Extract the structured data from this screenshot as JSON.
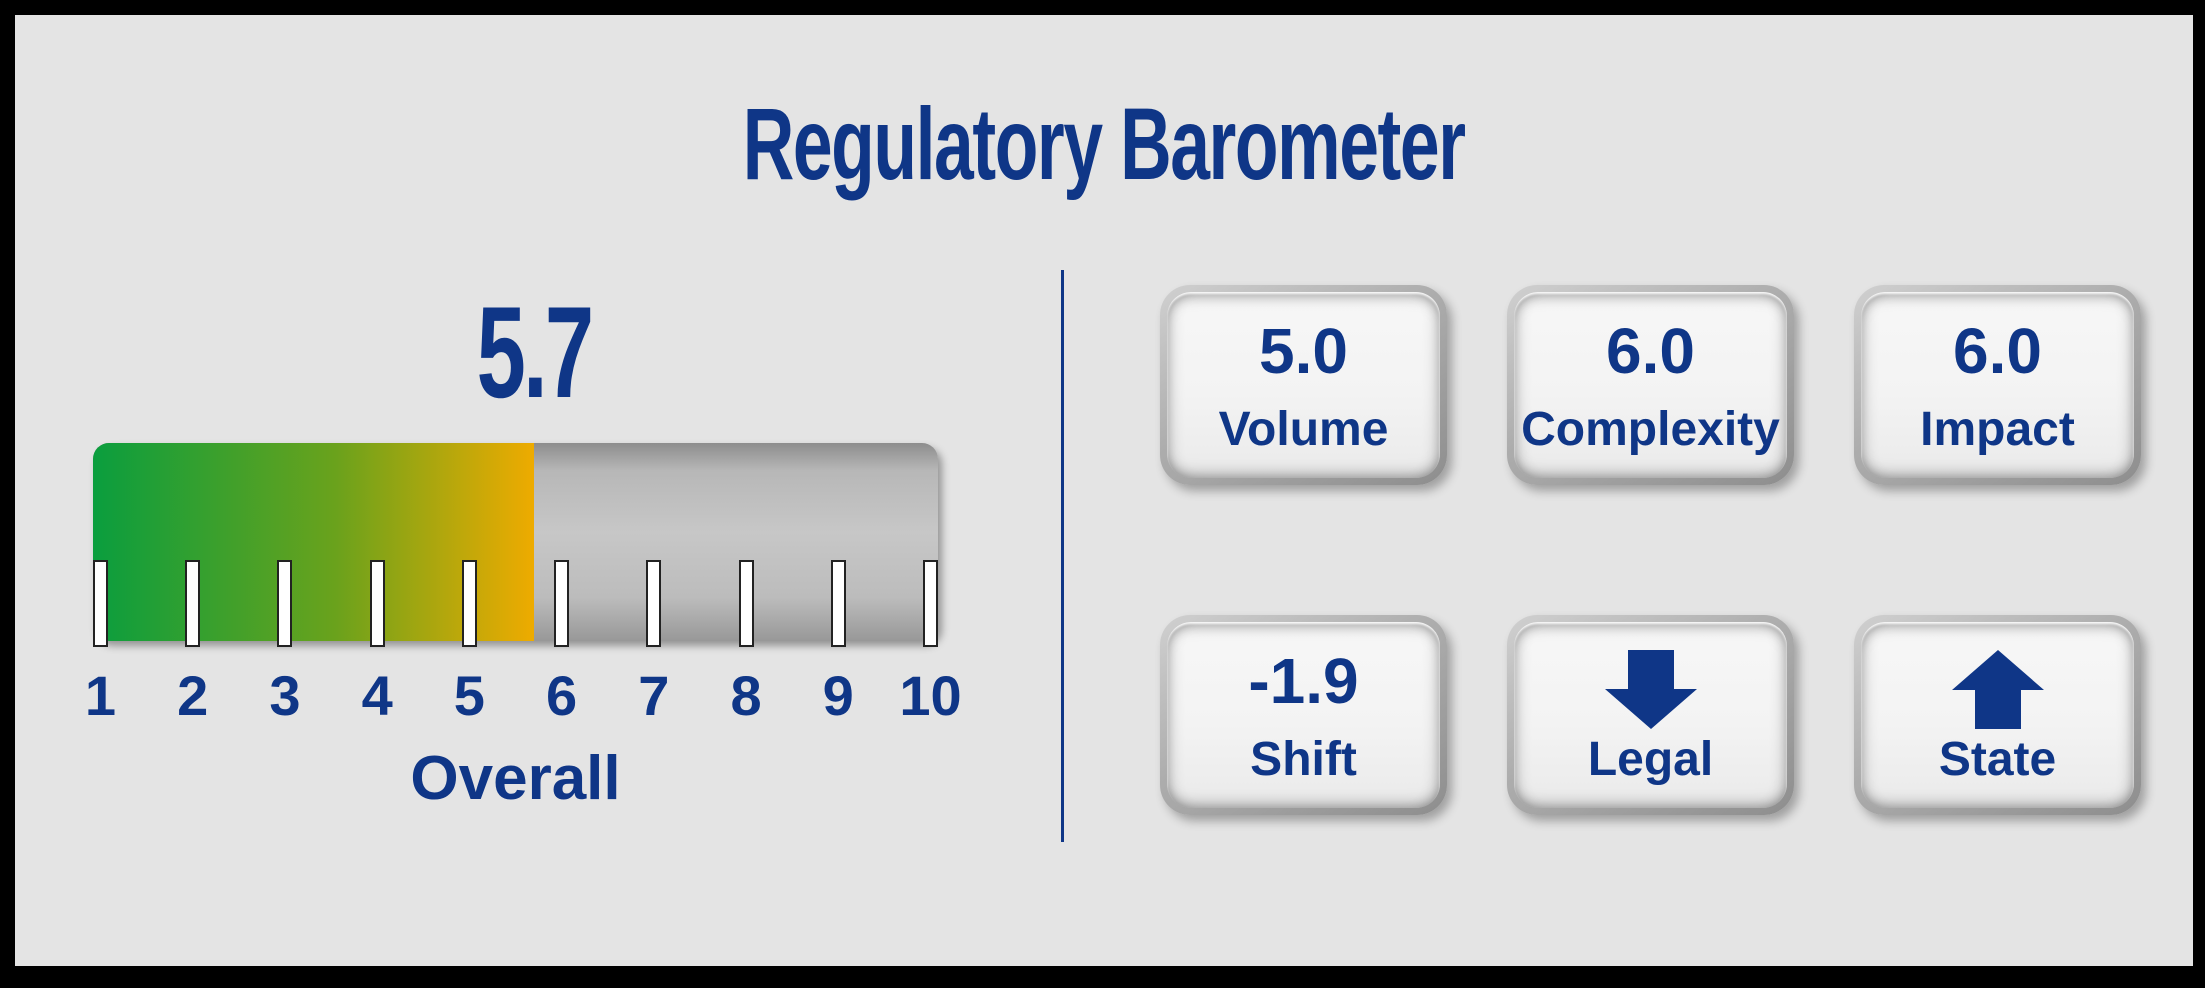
{
  "title": "Regulatory Barometer",
  "colors": {
    "blue": "#0f3687",
    "background": "#e4e4e4",
    "frame": "#000000",
    "gauge_green": "#0a9e3e",
    "gauge_amber": "#eeab00",
    "track_gray": "#bcbcbc"
  },
  "gauge": {
    "value": "5.7",
    "label": "Overall",
    "min": 1,
    "max": 10,
    "ticks": [
      "1",
      "2",
      "3",
      "4",
      "5",
      "6",
      "7",
      "8",
      "9",
      "10"
    ],
    "fill_percent": 52.2
  },
  "cards": [
    {
      "value": "5.0",
      "label": "Volume"
    },
    {
      "value": "6.0",
      "label": "Complexity"
    },
    {
      "value": "6.0",
      "label": "Impact"
    },
    {
      "value": "-1.9",
      "label": "Shift"
    },
    {
      "icon": "down-arrow",
      "label": "Legal"
    },
    {
      "icon": "up-arrow",
      "label": "State"
    }
  ],
  "chart_data": {
    "type": "gauge",
    "title": "Regulatory Barometer",
    "overall_value": 5.7,
    "axis": {
      "min": 1,
      "max": 10,
      "tick_labels": [
        1,
        2,
        3,
        4,
        5,
        6,
        7,
        8,
        9,
        10
      ]
    },
    "gauge_label": "Overall",
    "metrics": [
      {
        "name": "Volume",
        "value": 5.0
      },
      {
        "name": "Complexity",
        "value": 6.0
      },
      {
        "name": "Impact",
        "value": 6.0
      },
      {
        "name": "Shift",
        "value": -1.9
      },
      {
        "name": "Legal",
        "direction": "down"
      },
      {
        "name": "State",
        "direction": "up"
      }
    ],
    "legend_position": "none",
    "grid": false
  }
}
